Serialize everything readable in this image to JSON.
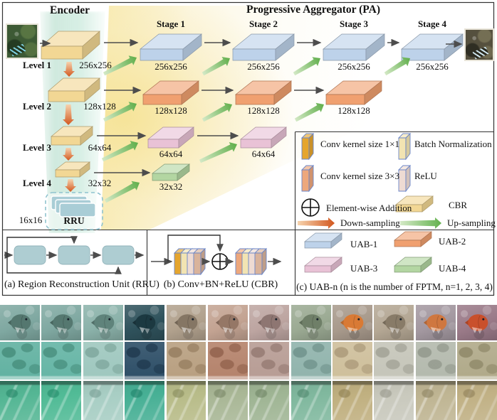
{
  "figure": {
    "encoder": {
      "title": "Encoder",
      "levels": [
        {
          "label": "Level 1",
          "size": "256x256"
        },
        {
          "label": "Level 2",
          "size": "128x128"
        },
        {
          "label": "Level 3",
          "size": "64x64"
        },
        {
          "label": "Level 4",
          "size": "32x32"
        }
      ],
      "rru": {
        "label": "RRU",
        "size": "16x16"
      },
      "block_color": "#f2d794"
    },
    "pa": {
      "title": "Progressive Aggregator (PA)",
      "stages": [
        "Stage 1",
        "Stage 2",
        "Stage 3",
        "Stage 4"
      ],
      "uab_rows": [
        {
          "name": "UAB-1",
          "color": "#bdd2ea",
          "size": "256x256",
          "count": 4
        },
        {
          "name": "UAB-2",
          "color": "#f0a070",
          "size": "128x128",
          "count": 3
        },
        {
          "name": "UAB-3",
          "color": "#e9c2d6",
          "size": "64x64",
          "count": 2
        },
        {
          "name": "UAB-4",
          "color": "#b3d6a2",
          "size": "32x32",
          "count": 1
        }
      ]
    },
    "panels": {
      "a_caption": "(a) Region Reconstruction Unit (RRU)",
      "b_caption": "(b) Conv+BN+ReLU (CBR)",
      "c_caption": "(c) UAB-n  (n is the number of FPTM, n=1, 2, 3, 4)"
    },
    "legend": {
      "items": [
        {
          "icon": "conv1x1-slab-icon",
          "label": "Conv kernel size 1×1",
          "color": "#e5a52e"
        },
        {
          "icon": "batch-norm-slab-icon",
          "label": "Batch Normalization",
          "color": "#f2e4b2"
        },
        {
          "icon": "conv3x3-slab-icon",
          "label": "Conv kernel size 3×3",
          "color": "#eda77c"
        },
        {
          "icon": "relu-slab-icon",
          "label": "ReLU",
          "color": "#eedbd3"
        },
        {
          "icon": "element-wise-addition-icon",
          "label": "Element-wise Addition",
          "color": "#111111"
        },
        {
          "icon": "cbr-slab-icon",
          "label": "CBR",
          "color": "#f2d794"
        },
        {
          "icon": "down-sampling-arrow-icon",
          "label": "Down-sampling",
          "color": "#d2571e"
        },
        {
          "icon": "up-sampling-arrow-icon",
          "label": "Up-sampling",
          "color": "#62b14d"
        }
      ],
      "uab_items": [
        {
          "label": "UAB-1",
          "color": "#bdd2ea"
        },
        {
          "label": "UAB-2",
          "color": "#f0a070"
        },
        {
          "label": "UAB-3",
          "color": "#e9c2d6"
        },
        {
          "label": "UAB-4",
          "color": "#b3d6a2"
        }
      ]
    },
    "io": {
      "input_image": {
        "base": "#3d5a35",
        "dark": "#223820",
        "mid": "#5d7a45",
        "accent": "#7fd0e0"
      },
      "output_image": {
        "base": "#55503e",
        "dark": "#2b2a20",
        "mid": "#7a7458",
        "accent": "#cfe6ee"
      }
    }
  },
  "strips": {
    "rows": [
      {
        "name": "fish-result-row",
        "cells": [
          {
            "bg": "#7fa8a1",
            "subject": "#54776f"
          },
          {
            "bg": "#80a9a2",
            "subject": "#557870"
          },
          {
            "bg": "#8bb2aa",
            "subject": "#5f837b"
          },
          {
            "bg": "#2f525c",
            "subject": "#1c3941"
          },
          {
            "bg": "#b1a18d",
            "subject": "#857664"
          },
          {
            "bg": "#c3a392",
            "subject": "#957766"
          },
          {
            "bg": "#bda5a1",
            "subject": "#8e7672"
          },
          {
            "bg": "#9baa93",
            "subject": "#6f7f68"
          },
          {
            "bg": "#a89a8c",
            "subject": "#d97a35"
          },
          {
            "bg": "#b4a794",
            "subject": "#887b68"
          },
          {
            "bg": "#a398a0",
            "subject": "#cf7740"
          },
          {
            "bg": "#9a7a88",
            "subject": "#c9502c"
          }
        ]
      },
      {
        "name": "coral-result-row",
        "cells": [
          {
            "bg": "#61b1a1",
            "subject": "#3f8573"
          },
          {
            "bg": "#65b5a5",
            "subject": "#428876"
          },
          {
            "bg": "#9ec7be",
            "subject": "#77a096"
          },
          {
            "bg": "#2d4e67",
            "subject": "#1a3348"
          },
          {
            "bg": "#b89f80",
            "subject": "#8f7658"
          },
          {
            "bg": "#b4826b",
            "subject": "#8a5a45"
          },
          {
            "bg": "#b79c94",
            "subject": "#8d726a"
          },
          {
            "bg": "#90b3ac",
            "subject": "#688b84"
          },
          {
            "bg": "#cebf9b",
            "subject": "#a49272"
          },
          {
            "bg": "#c5c5b9",
            "subject": "#9a9a8e"
          },
          {
            "bg": "#b3b9ad",
            "subject": "#8a9084"
          },
          {
            "bg": "#b0a989",
            "subject": "#878060"
          }
        ]
      },
      {
        "name": "seafloor-result-row",
        "cells": [
          {
            "bg": "#54b694",
            "subject": "#2f8f70"
          },
          {
            "bg": "#51bb96",
            "subject": "#2c9371"
          },
          {
            "bg": "#a8cec4",
            "subject": "#81a79d"
          },
          {
            "bg": "#47b095",
            "subject": "#268a71"
          },
          {
            "bg": "#b8bc89",
            "subject": "#909464"
          },
          {
            "bg": "#a9b796",
            "subject": "#818f6e"
          },
          {
            "bg": "#9fb594",
            "subject": "#778d6c"
          },
          {
            "bg": "#80b89e",
            "subject": "#589076"
          },
          {
            "bg": "#c0b080",
            "subject": "#97885a"
          },
          {
            "bg": "#c9c9bd",
            "subject": "#a0a094"
          },
          {
            "bg": "#bfb593",
            "subject": "#968c6a"
          },
          {
            "bg": "#c1b185",
            "subject": "#988860"
          }
        ]
      }
    ]
  }
}
